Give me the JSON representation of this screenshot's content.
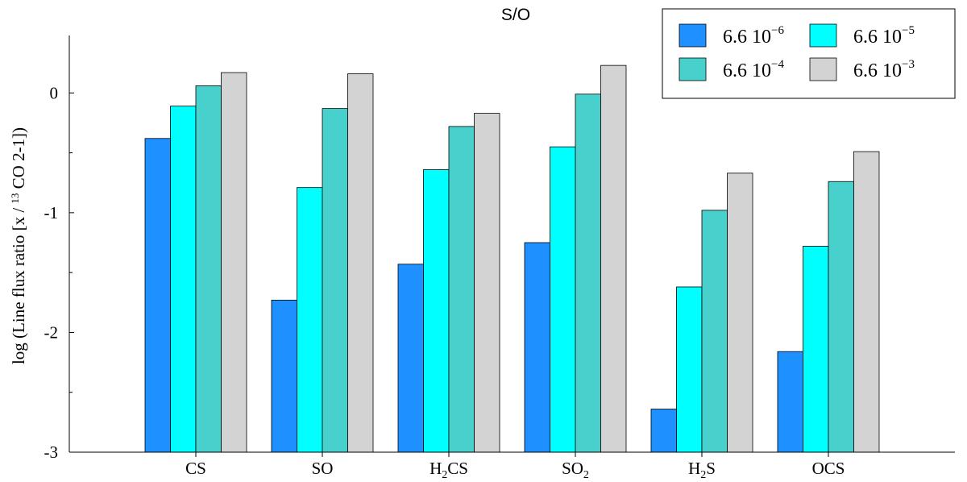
{
  "chart_data": {
    "type": "bar",
    "title": "S/O",
    "ylabel": "log (Line flux ratio [x / ",
    "ylabel_sup": "13",
    "ylabel_tail": " CO 2-1])",
    "ylim": [
      -3,
      0.48
    ],
    "yticks": [
      0,
      -1,
      -2,
      -3
    ],
    "categories": [
      {
        "base": "CS",
        "sub": "",
        "tail": ""
      },
      {
        "base": "SO",
        "sub": "",
        "tail": ""
      },
      {
        "base": "H",
        "sub": "2",
        "tail": "CS"
      },
      {
        "base": "SO",
        "sub": "2",
        "tail": ""
      },
      {
        "base": "H",
        "sub": "2",
        "tail": "S"
      },
      {
        "base": "OCS",
        "sub": "",
        "tail": ""
      }
    ],
    "series": [
      {
        "name": "6.6 10",
        "exp": "−6",
        "color": "#1e90ff",
        "values": [
          -0.38,
          -1.73,
          -1.43,
          -1.25,
          -2.64,
          -2.16
        ]
      },
      {
        "name": "6.6 10",
        "exp": "−5",
        "color": "#00ffff",
        "values": [
          -0.11,
          -0.79,
          -0.64,
          -0.45,
          -1.62,
          -1.28
        ]
      },
      {
        "name": "6.6 10",
        "exp": "−4",
        "color": "#48d1cc",
        "values": [
          0.06,
          -0.13,
          -0.28,
          -0.01,
          -0.98,
          -0.74
        ]
      },
      {
        "name": "6.6 10",
        "exp": "−3",
        "color": "#d3d3d3",
        "values": [
          0.17,
          0.16,
          -0.17,
          0.23,
          -0.67,
          -0.49
        ]
      }
    ],
    "legend": {
      "placement": "top-right",
      "columns": 2
    }
  }
}
